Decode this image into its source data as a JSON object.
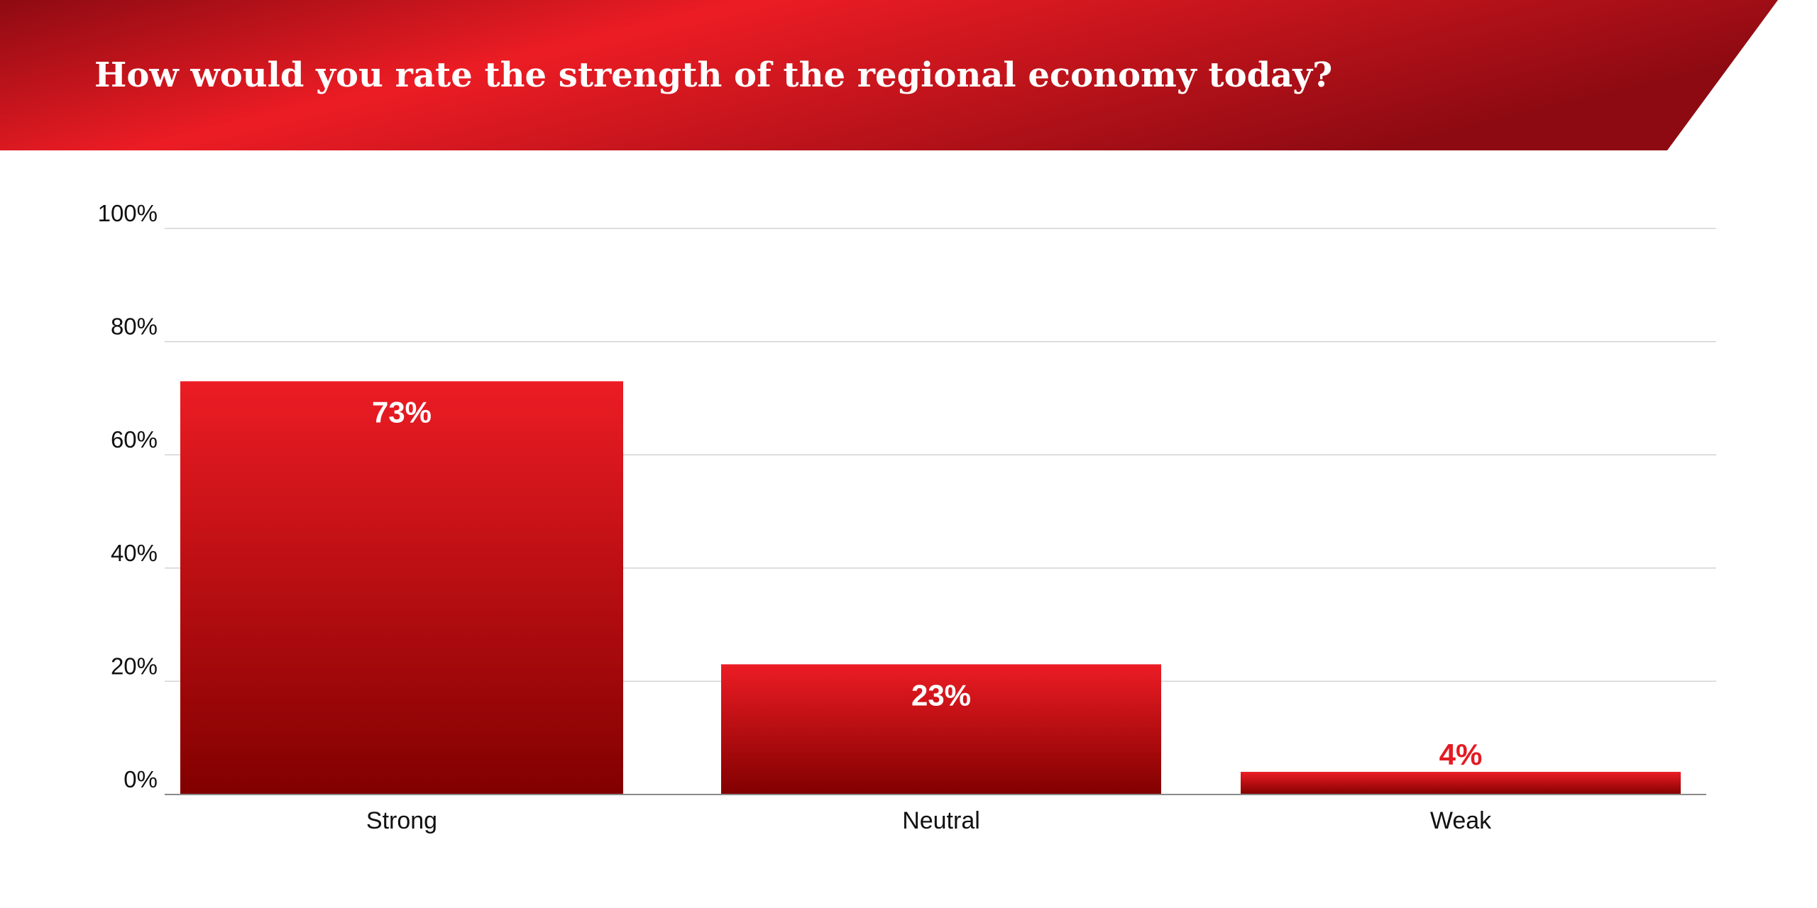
{
  "title": "How would you rate the strength of the regional economy today?",
  "colors": {
    "banner_dark": "#8e0a12",
    "banner_bright": "#ec1c24",
    "bar_top": "#ec1c24",
    "bar_bottom": "#820000",
    "label_inside": "#ffffff",
    "label_outside": "#e31b23",
    "grid": "#d3d3d3",
    "axis": "#8a8a8a",
    "text": "#111111"
  },
  "chart_data": {
    "type": "bar",
    "title": "How would you rate the strength of the regional economy today?",
    "categories": [
      "Strong",
      "Neutral",
      "Weak"
    ],
    "values": [
      73,
      23,
      4
    ],
    "data_labels": [
      "73%",
      "23%",
      "4%"
    ],
    "ylim": [
      0,
      100
    ],
    "yticks": [
      0,
      20,
      40,
      60,
      80,
      100
    ],
    "ytick_labels": [
      "0%",
      "20%",
      "40%",
      "60%",
      "80%",
      "100%"
    ],
    "xlabel": "",
    "ylabel": "",
    "grid": true,
    "legend": "none"
  }
}
